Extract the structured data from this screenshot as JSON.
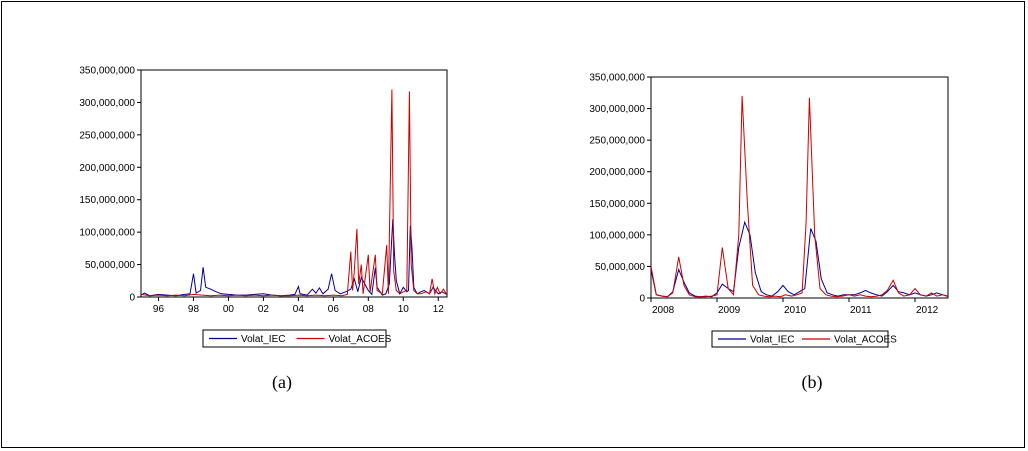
{
  "colors": {
    "iec": "#000099",
    "acoes": "#cc0000",
    "axis": "#000000",
    "background": "#ffffff"
  },
  "chart_data": [
    {
      "type": "line",
      "caption": "(a)",
      "x_ticks": [
        "96",
        "98",
        "00",
        "02",
        "04",
        "06",
        "08",
        "10",
        "12"
      ],
      "xlim": [
        1995,
        2012.5
      ],
      "y_ticks": [
        "0",
        "50,000,000",
        "100,000,000",
        "150,000,000",
        "200,000,000",
        "250,000,000",
        "300,000,000",
        "350,000,000"
      ],
      "ylim": [
        0,
        350000000
      ],
      "legend_position": "bottom-center",
      "series": [
        {
          "name": "Volat_IEC",
          "color": "#000099",
          "points": [
            [
              1995,
              3000000
            ],
            [
              1995.2,
              6000000
            ],
            [
              1995.5,
              2000000
            ],
            [
              1996,
              4000000
            ],
            [
              1996.5,
              3000000
            ],
            [
              1997,
              2000000
            ],
            [
              1997.5,
              4000000
            ],
            [
              1997.8,
              5000000
            ],
            [
              1998,
              36000000
            ],
            [
              1998.15,
              6000000
            ],
            [
              1998.4,
              10000000
            ],
            [
              1998.55,
              46000000
            ],
            [
              1998.7,
              15000000
            ],
            [
              1999,
              12000000
            ],
            [
              1999.3,
              8000000
            ],
            [
              1999.6,
              5000000
            ],
            [
              2000,
              4000000
            ],
            [
              2000.5,
              3000000
            ],
            [
              2001,
              3000000
            ],
            [
              2001.5,
              4000000
            ],
            [
              2002,
              5000000
            ],
            [
              2002.5,
              3000000
            ],
            [
              2003,
              2000000
            ],
            [
              2003.5,
              3000000
            ],
            [
              2003.8,
              4000000
            ],
            [
              2004,
              16000000
            ],
            [
              2004.1,
              5000000
            ],
            [
              2004.5,
              3000000
            ],
            [
              2004.8,
              12000000
            ],
            [
              2005,
              6000000
            ],
            [
              2005.2,
              14000000
            ],
            [
              2005.4,
              5000000
            ],
            [
              2005.7,
              12000000
            ],
            [
              2005.9,
              36000000
            ],
            [
              2006.1,
              10000000
            ],
            [
              2006.4,
              5000000
            ],
            [
              2006.7,
              8000000
            ],
            [
              2007,
              12000000
            ],
            [
              2007.2,
              28000000
            ],
            [
              2007.4,
              8000000
            ],
            [
              2007.6,
              30000000
            ],
            [
              2007.8,
              20000000
            ],
            [
              2008,
              10000000
            ],
            [
              2008.2,
              4000000
            ],
            [
              2008.4,
              45000000
            ],
            [
              2008.5,
              15000000
            ],
            [
              2008.8,
              3000000
            ],
            [
              2009,
              5000000
            ],
            [
              2009.2,
              20000000
            ],
            [
              2009.4,
              120000000
            ],
            [
              2009.5,
              65000000
            ],
            [
              2009.6,
              25000000
            ],
            [
              2009.8,
              5000000
            ],
            [
              2010,
              15000000
            ],
            [
              2010.2,
              8000000
            ],
            [
              2010.3,
              10000000
            ],
            [
              2010.4,
              110000000
            ],
            [
              2010.5,
              75000000
            ],
            [
              2010.6,
              15000000
            ],
            [
              2010.8,
              5000000
            ],
            [
              2011,
              8000000
            ],
            [
              2011.2,
              10000000
            ],
            [
              2011.5,
              5000000
            ],
            [
              2011.7,
              15000000
            ],
            [
              2011.9,
              8000000
            ],
            [
              2012,
              5000000
            ],
            [
              2012.2,
              8000000
            ],
            [
              2012.5,
              4000000
            ]
          ]
        },
        {
          "name": "Volat_ACOES",
          "color": "#cc0000",
          "points": [
            [
              1995,
              4000000
            ],
            [
              1995.5,
              2000000
            ],
            [
              1996,
              3000000
            ],
            [
              1996.5,
              2000000
            ],
            [
              1997,
              3000000
            ],
            [
              1997.5,
              2000000
            ],
            [
              1998,
              4000000
            ],
            [
              1998.5,
              3000000
            ],
            [
              1999,
              2000000
            ],
            [
              1999.5,
              3000000
            ],
            [
              2000,
              2000000
            ],
            [
              2000.5,
              3000000
            ],
            [
              2001,
              2000000
            ],
            [
              2001.5,
              3000000
            ],
            [
              2002,
              2000000
            ],
            [
              2002.5,
              3000000
            ],
            [
              2003,
              2000000
            ],
            [
              2003.5,
              2000000
            ],
            [
              2004,
              3000000
            ],
            [
              2004.5,
              2000000
            ],
            [
              2005,
              3000000
            ],
            [
              2005.5,
              2000000
            ],
            [
              2006,
              3000000
            ],
            [
              2006.5,
              2000000
            ],
            [
              2006.8,
              4000000
            ],
            [
              2007,
              70000000
            ],
            [
              2007.1,
              10000000
            ],
            [
              2007.2,
              40000000
            ],
            [
              2007.35,
              105000000
            ],
            [
              2007.45,
              20000000
            ],
            [
              2007.6,
              50000000
            ],
            [
              2007.7,
              5000000
            ],
            [
              2007.85,
              35000000
            ],
            [
              2008,
              65000000
            ],
            [
              2008.1,
              8000000
            ],
            [
              2008.4,
              65000000
            ],
            [
              2008.5,
              10000000
            ],
            [
              2008.8,
              5000000
            ],
            [
              2009.05,
              80000000
            ],
            [
              2009.15,
              5000000
            ],
            [
              2009.35,
              320000000
            ],
            [
              2009.45,
              40000000
            ],
            [
              2009.6,
              10000000
            ],
            [
              2009.8,
              5000000
            ],
            [
              2010,
              8000000
            ],
            [
              2010.2,
              10000000
            ],
            [
              2010.35,
              317000000
            ],
            [
              2010.45,
              50000000
            ],
            [
              2010.6,
              10000000
            ],
            [
              2010.8,
              5000000
            ],
            [
              2011,
              5000000
            ],
            [
              2011.3,
              8000000
            ],
            [
              2011.5,
              5000000
            ],
            [
              2011.65,
              28000000
            ],
            [
              2011.8,
              5000000
            ],
            [
              2011.95,
              15000000
            ],
            [
              2012.1,
              5000000
            ],
            [
              2012.3,
              12000000
            ],
            [
              2012.5,
              3000000
            ]
          ]
        }
      ]
    },
    {
      "type": "line",
      "caption": "(b)",
      "x_ticks": [
        "2008",
        "2009",
        "2010",
        "2011",
        "2012"
      ],
      "xlim": [
        2008,
        2012.5
      ],
      "y_ticks": [
        "0",
        "50,000,000",
        "100,000,000",
        "150,000,000",
        "200,000,000",
        "250,000,000",
        "300,000,000",
        "350,000,000"
      ],
      "ylim": [
        0,
        350000000
      ],
      "legend_position": "bottom-center",
      "series": [
        {
          "name": "Volat_IEC",
          "color": "#000099",
          "points": [
            [
              2008,
              45000000
            ],
            [
              2008.08,
              5000000
            ],
            [
              2008.17,
              3000000
            ],
            [
              2008.25,
              2000000
            ],
            [
              2008.33,
              10000000
            ],
            [
              2008.42,
              45000000
            ],
            [
              2008.5,
              25000000
            ],
            [
              2008.58,
              8000000
            ],
            [
              2008.67,
              3000000
            ],
            [
              2008.75,
              2000000
            ],
            [
              2008.83,
              3000000
            ],
            [
              2008.92,
              2000000
            ],
            [
              2009,
              8000000
            ],
            [
              2009.08,
              22000000
            ],
            [
              2009.17,
              15000000
            ],
            [
              2009.25,
              10000000
            ],
            [
              2009.33,
              80000000
            ],
            [
              2009.42,
              120000000
            ],
            [
              2009.5,
              100000000
            ],
            [
              2009.58,
              40000000
            ],
            [
              2009.67,
              10000000
            ],
            [
              2009.75,
              5000000
            ],
            [
              2009.83,
              3000000
            ],
            [
              2009.92,
              10000000
            ],
            [
              2010,
              20000000
            ],
            [
              2010.08,
              10000000
            ],
            [
              2010.17,
              5000000
            ],
            [
              2010.25,
              10000000
            ],
            [
              2010.33,
              15000000
            ],
            [
              2010.42,
              110000000
            ],
            [
              2010.5,
              90000000
            ],
            [
              2010.58,
              30000000
            ],
            [
              2010.67,
              8000000
            ],
            [
              2010.75,
              5000000
            ],
            [
              2010.83,
              3000000
            ],
            [
              2010.92,
              5000000
            ],
            [
              2011,
              5000000
            ],
            [
              2011.08,
              5000000
            ],
            [
              2011.17,
              8000000
            ],
            [
              2011.25,
              12000000
            ],
            [
              2011.33,
              8000000
            ],
            [
              2011.42,
              5000000
            ],
            [
              2011.5,
              3000000
            ],
            [
              2011.58,
              10000000
            ],
            [
              2011.67,
              20000000
            ],
            [
              2011.75,
              10000000
            ],
            [
              2011.83,
              8000000
            ],
            [
              2011.92,
              5000000
            ],
            [
              2012,
              8000000
            ],
            [
              2012.08,
              5000000
            ],
            [
              2012.17,
              3000000
            ],
            [
              2012.25,
              5000000
            ],
            [
              2012.33,
              8000000
            ],
            [
              2012.42,
              5000000
            ],
            [
              2012.5,
              3000000
            ]
          ]
        },
        {
          "name": "Volat_ACOES",
          "color": "#cc0000",
          "points": [
            [
              2008,
              50000000
            ],
            [
              2008.08,
              5000000
            ],
            [
              2008.17,
              3000000
            ],
            [
              2008.25,
              2000000
            ],
            [
              2008.33,
              8000000
            ],
            [
              2008.42,
              65000000
            ],
            [
              2008.5,
              20000000
            ],
            [
              2008.58,
              5000000
            ],
            [
              2008.67,
              2000000
            ],
            [
              2008.75,
              2000000
            ],
            [
              2008.83,
              2000000
            ],
            [
              2008.92,
              3000000
            ],
            [
              2009,
              5000000
            ],
            [
              2009.08,
              80000000
            ],
            [
              2009.17,
              15000000
            ],
            [
              2009.25,
              5000000
            ],
            [
              2009.33,
              100000000
            ],
            [
              2009.38,
              320000000
            ],
            [
              2009.46,
              150000000
            ],
            [
              2009.54,
              20000000
            ],
            [
              2009.63,
              5000000
            ],
            [
              2009.71,
              3000000
            ],
            [
              2009.79,
              2000000
            ],
            [
              2009.88,
              3000000
            ],
            [
              2009.96,
              2000000
            ],
            [
              2010.04,
              5000000
            ],
            [
              2010.13,
              3000000
            ],
            [
              2010.21,
              5000000
            ],
            [
              2010.29,
              8000000
            ],
            [
              2010.35,
              120000000
            ],
            [
              2010.4,
              317000000
            ],
            [
              2010.48,
              100000000
            ],
            [
              2010.56,
              15000000
            ],
            [
              2010.65,
              5000000
            ],
            [
              2010.73,
              3000000
            ],
            [
              2010.81,
              2000000
            ],
            [
              2010.9,
              3000000
            ],
            [
              2011,
              5000000
            ],
            [
              2011.08,
              3000000
            ],
            [
              2011.17,
              5000000
            ],
            [
              2011.25,
              3000000
            ],
            [
              2011.33,
              2000000
            ],
            [
              2011.42,
              3000000
            ],
            [
              2011.5,
              5000000
            ],
            [
              2011.58,
              12000000
            ],
            [
              2011.67,
              28000000
            ],
            [
              2011.75,
              8000000
            ],
            [
              2011.83,
              3000000
            ],
            [
              2011.92,
              5000000
            ],
            [
              2012,
              15000000
            ],
            [
              2012.08,
              5000000
            ],
            [
              2012.17,
              3000000
            ],
            [
              2012.25,
              8000000
            ],
            [
              2012.33,
              3000000
            ],
            [
              2012.42,
              5000000
            ],
            [
              2012.5,
              2000000
            ]
          ]
        }
      ]
    }
  ]
}
